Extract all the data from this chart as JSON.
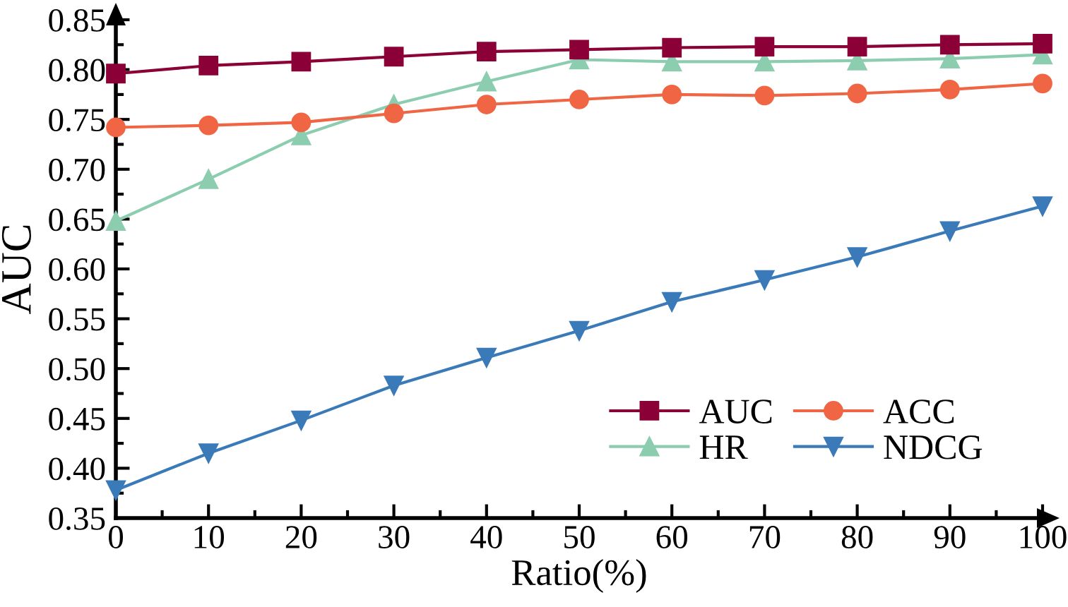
{
  "chart_data": {
    "type": "line",
    "xlabel": "Ratio(%)",
    "ylabel": "AUC",
    "x": [
      0,
      10,
      20,
      30,
      40,
      50,
      60,
      70,
      80,
      90,
      100
    ],
    "series": [
      {
        "name": "AUC",
        "color": "#8b0037",
        "marker": "square",
        "values": [
          0.796,
          0.804,
          0.808,
          0.813,
          0.818,
          0.82,
          0.822,
          0.823,
          0.823,
          0.825,
          0.826
        ]
      },
      {
        "name": "ACC",
        "color": "#f06543",
        "marker": "circle",
        "values": [
          0.742,
          0.744,
          0.747,
          0.756,
          0.765,
          0.77,
          0.775,
          0.774,
          0.776,
          0.78,
          0.786
        ]
      },
      {
        "name": "HR",
        "color": "#8ccdb0",
        "marker": "triangle",
        "values": [
          0.648,
          0.69,
          0.734,
          0.765,
          0.788,
          0.81,
          0.808,
          0.808,
          0.809,
          0.811,
          0.815
        ]
      },
      {
        "name": "NDCG",
        "color": "#3a7ab8",
        "marker": "triangle_down",
        "values": [
          0.378,
          0.415,
          0.448,
          0.483,
          0.511,
          0.538,
          0.567,
          0.589,
          0.612,
          0.638,
          0.663
        ]
      }
    ],
    "xlim": [
      0,
      100
    ],
    "xticks": [
      0,
      10,
      20,
      30,
      40,
      50,
      60,
      70,
      80,
      90,
      100
    ],
    "ylim": [
      0.35,
      0.85
    ],
    "yticks": [
      {
        "value": 0.35,
        "label": "0.35"
      },
      {
        "value": 0.4,
        "label": "0.40"
      },
      {
        "value": 0.45,
        "label": "0.45"
      },
      {
        "value": 0.5,
        "label": "0.50"
      },
      {
        "value": 0.55,
        "label": "0.55"
      },
      {
        "value": 0.6,
        "label": "0.60"
      },
      {
        "value": 0.65,
        "label": "0.65"
      },
      {
        "value": 0.7,
        "label": "0.70"
      },
      {
        "value": 0.75,
        "label": "0.75"
      },
      {
        "value": 0.8,
        "label": "0.80"
      },
      {
        "value": 0.85,
        "label": "0.85"
      }
    ],
    "grid": false,
    "legend": "bottom right",
    "line_style": "solid"
  }
}
